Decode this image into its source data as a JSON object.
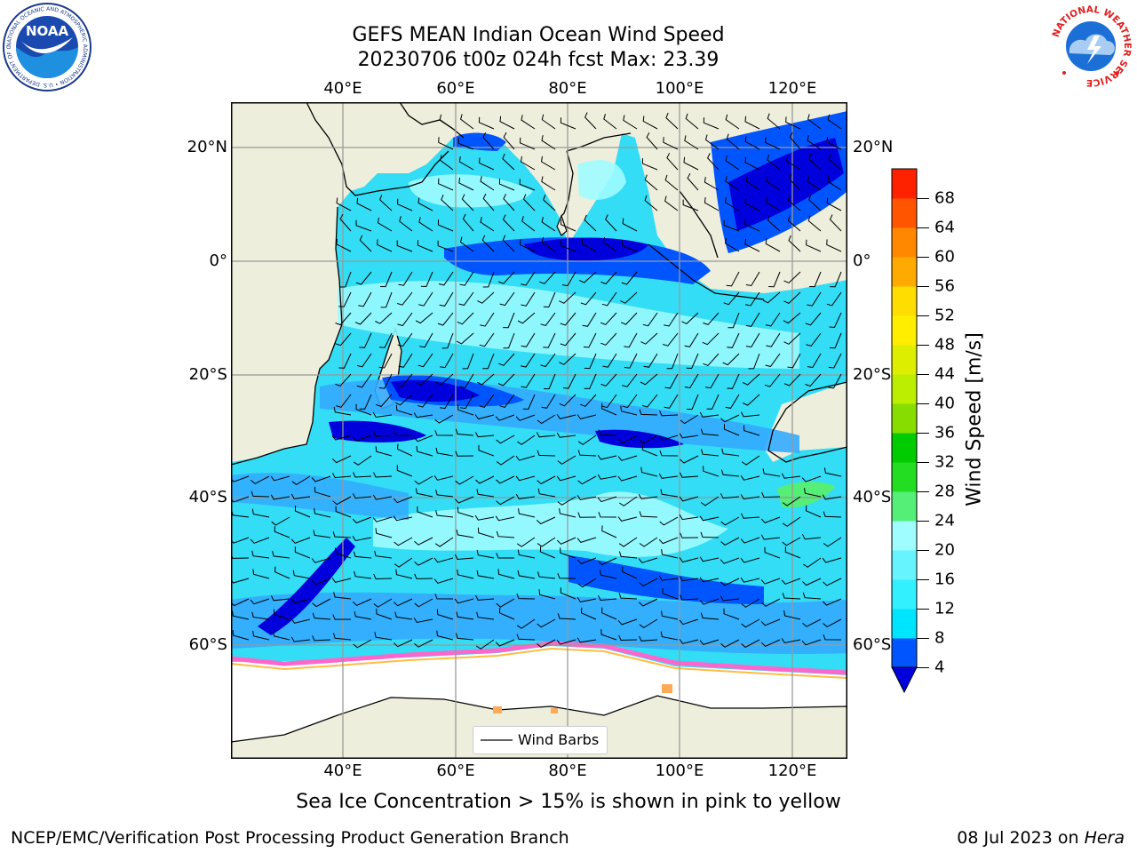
{
  "title": {
    "line1": "GEFS MEAN Indian Ocean Wind Speed",
    "line2": "20230706 t00z 024h fcst   Max: 23.39"
  },
  "axes": {
    "lon_ticks": [
      "40°E",
      "60°E",
      "80°E",
      "100°E",
      "120°E"
    ],
    "lat_ticks": [
      "20°N",
      "0°",
      "20°S",
      "40°S",
      "60°S"
    ]
  },
  "legend": {
    "label": "Wind Barbs"
  },
  "colorbar": {
    "label": "Wind Speed [m/s]",
    "ticks": [
      "4",
      "8",
      "12",
      "16",
      "20",
      "24",
      "28",
      "32",
      "36",
      "40",
      "44",
      "48",
      "52",
      "56",
      "60",
      "64",
      "68"
    ],
    "colors": [
      "#0055ff",
      "#00e5ff",
      "#33f0ff",
      "#66f5ff",
      "#9ffcff",
      "#55ee77",
      "#22dd22",
      "#00cc00",
      "#88dd00",
      "#bbee00",
      "#ddee00",
      "#ffee00",
      "#ffdd00",
      "#ffaa00",
      "#ff8800",
      "#ff5500",
      "#ff2200"
    ],
    "under_color": "#0000dd"
  },
  "caption": "Sea Ice Concentration > 15% is shown in pink to yellow",
  "footer": {
    "left": "NCEP/EMC/Verification Post Processing Product Generation Branch",
    "right_date": "08 Jul 2023 on ",
    "right_host": "Hera"
  },
  "logos": {
    "noaa": "NOAA",
    "noaa_ring": "NATIONAL OCEANIC AND ATMOSPHERIC ADMINISTRATION • U.S. DEPARTMENT OF COMMERCE •",
    "nws_ring": "NATIONAL WEATHER SERVICE"
  },
  "map_colors": {
    "land": "#eeeedd",
    "ocean_base": "#33ddf5",
    "light": "#9ffcff",
    "mid": "#33aaff",
    "blue": "#0055ff",
    "dark": "#0000dd",
    "ice": "#ffffff"
  }
}
